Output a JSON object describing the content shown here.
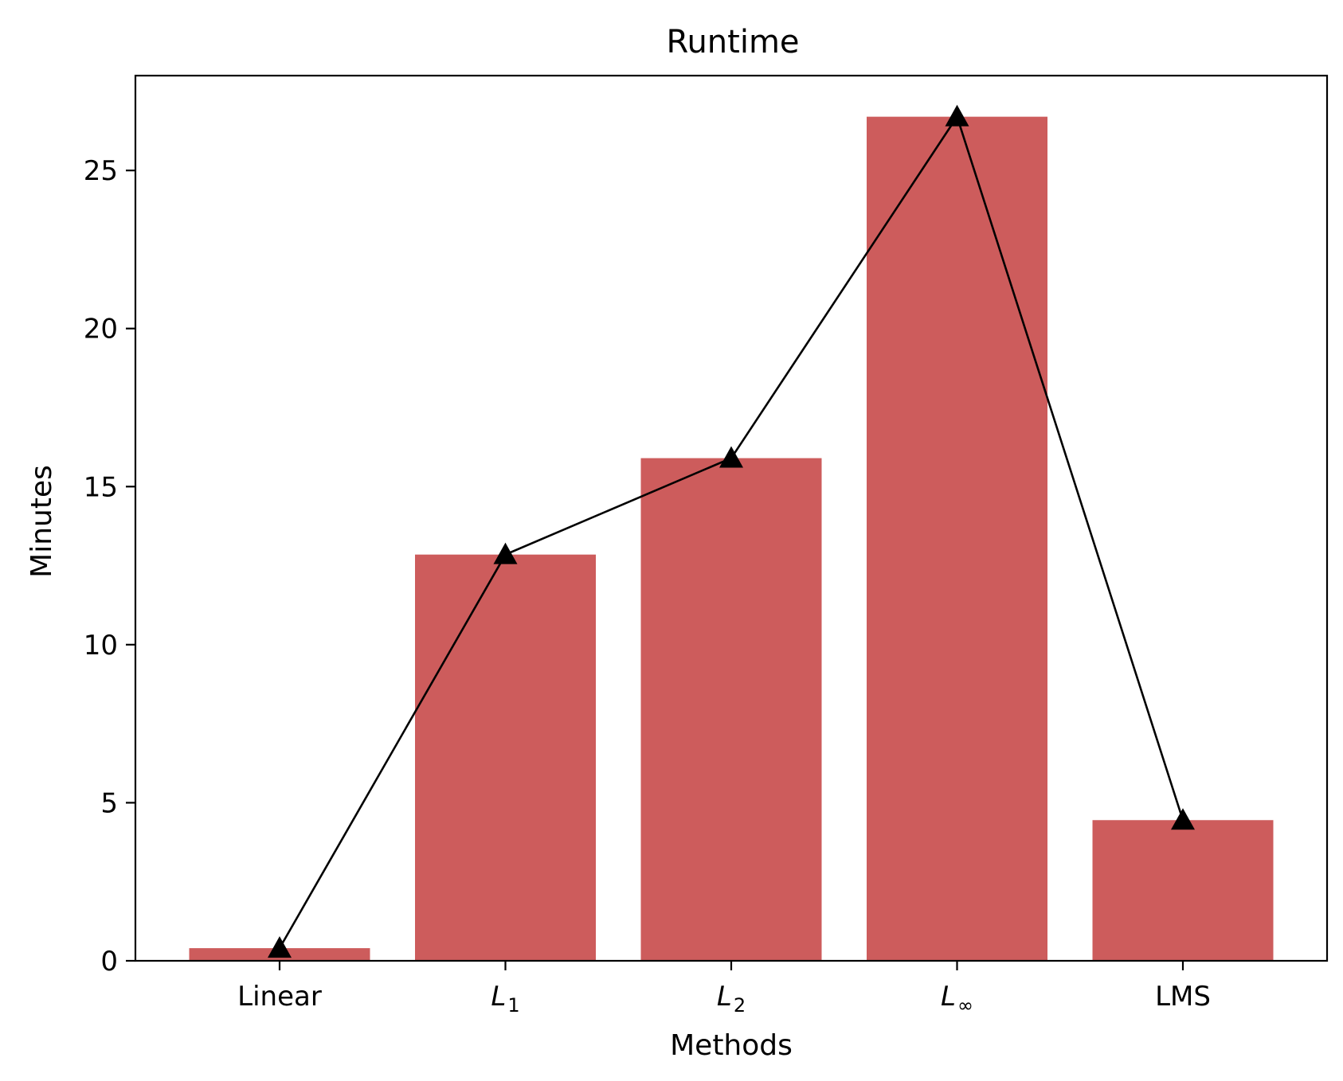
{
  "chart_data": {
    "type": "bar",
    "title": "Runtime",
    "xlabel": "Methods",
    "ylabel": "Minutes",
    "categories": [
      {
        "label": "Linear",
        "base": "Linear",
        "sub": ""
      },
      {
        "label": "L1",
        "base": "L",
        "sub": "1"
      },
      {
        "label": "L2",
        "base": "L",
        "sub": "2"
      },
      {
        "label": "L∞",
        "base": "L",
        "sub": "∞"
      },
      {
        "label": "LMS",
        "base": "LMS",
        "sub": ""
      }
    ],
    "values": [
      0.4,
      12.85,
      15.9,
      26.7,
      4.45
    ],
    "line_values": [
      0.4,
      12.85,
      15.9,
      26.7,
      4.45
    ],
    "line_marker": "triangle",
    "ylim": [
      0,
      28
    ],
    "yticks": [
      0,
      5,
      10,
      15,
      20,
      25
    ],
    "grid": false,
    "colors": {
      "bar": "#cd5c5c",
      "line": "#000000"
    }
  }
}
